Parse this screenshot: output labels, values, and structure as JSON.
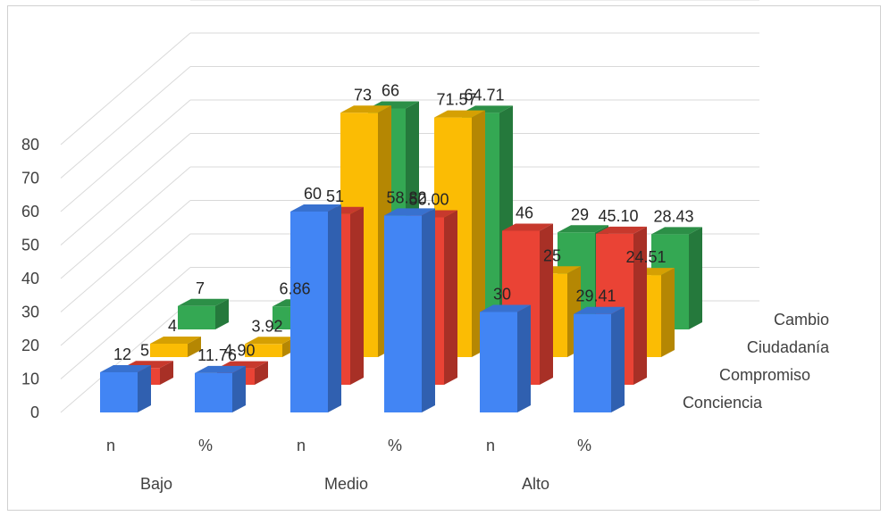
{
  "chart_data": {
    "type": "bar",
    "variant": "3d-clustered",
    "title": "",
    "xlabel": "",
    "ylabel": "",
    "ylim": [
      0,
      80
    ],
    "yticks": [
      0,
      10,
      20,
      30,
      40,
      50,
      60,
      70,
      80
    ],
    "grid": true,
    "groups": [
      "Bajo",
      "Medio",
      "Alto"
    ],
    "categories": [
      "n",
      "%",
      "n",
      "%",
      "n",
      "%"
    ],
    "category_group": [
      0,
      0,
      1,
      1,
      2,
      2
    ],
    "series": [
      {
        "name": "Conciencia",
        "color": "#4285f4",
        "values": [
          12,
          11.76,
          60,
          58.82,
          30,
          29.41
        ],
        "labels": [
          "12",
          "11.76",
          "60",
          "58.82",
          "30",
          "29.41"
        ]
      },
      {
        "name": "Compromiso",
        "color": "#ea4335",
        "values": [
          5,
          4.9,
          51,
          50.0,
          46,
          45.1
        ],
        "labels": [
          "5",
          "4.90",
          "51",
          "50.00",
          "46",
          "45.10"
        ]
      },
      {
        "name": "Ciudadanía",
        "color": "#fbbc04",
        "values": [
          4,
          3.92,
          73,
          71.57,
          25,
          24.51
        ],
        "labels": [
          "4",
          "3.92",
          "73",
          "71.57",
          "25",
          "24.51"
        ]
      },
      {
        "name": "Cambio",
        "color": "#34a853",
        "values": [
          7,
          6.86,
          66,
          64.71,
          29,
          28.43
        ],
        "labels": [
          "7",
          "6.86",
          "66",
          "64.71",
          "29",
          "28.43"
        ]
      }
    ]
  }
}
